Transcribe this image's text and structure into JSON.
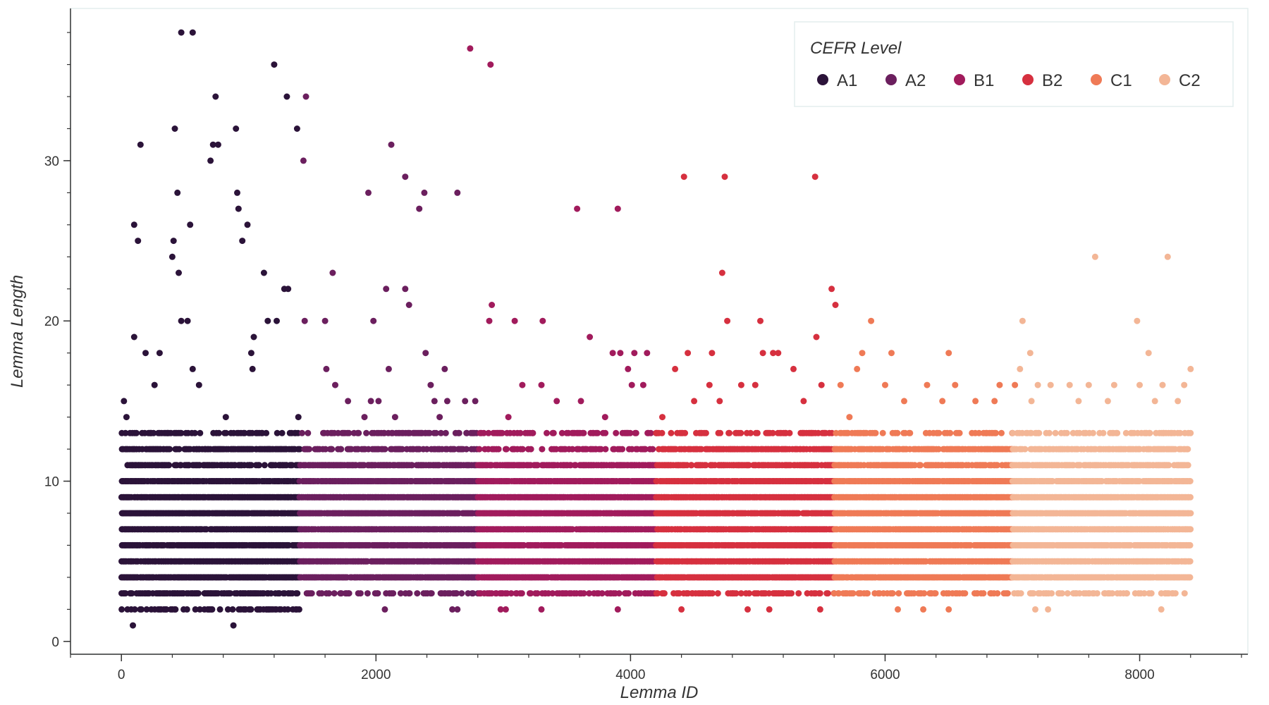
{
  "chart_data": {
    "type": "scatter",
    "title": "",
    "xlabel": "Lemma ID",
    "ylabel": "Lemma Length",
    "xlim": [
      -400,
      8850
    ],
    "ylim": [
      -0.8,
      39.5
    ],
    "x_ticks": [
      0,
      2000,
      4000,
      6000,
      8000
    ],
    "y_ticks": [
      0,
      10,
      20,
      30
    ],
    "grid": false,
    "legend": {
      "title": "CEFR Level",
      "placement": "top-right",
      "entries": [
        "A1",
        "A2",
        "B1",
        "B2",
        "C1",
        "C2"
      ]
    },
    "series": [
      {
        "name": "A1",
        "color": "#2b1339",
        "x_range": [
          0,
          1400
        ],
        "dense_levels": [
          3,
          4,
          5,
          6,
          7,
          8,
          9,
          10,
          11,
          12
        ],
        "sparse_levels": [
          2,
          13
        ],
        "outliers": [
          [
            90,
            1
          ],
          [
            880,
            1
          ],
          [
            20,
            15
          ],
          [
            40,
            14
          ],
          [
            100,
            19
          ],
          [
            130,
            25
          ],
          [
            100,
            26
          ],
          [
            150,
            31
          ],
          [
            190,
            18
          ],
          [
            260,
            16
          ],
          [
            300,
            18
          ],
          [
            420,
            32
          ],
          [
            400,
            24
          ],
          [
            410,
            25
          ],
          [
            440,
            28
          ],
          [
            450,
            23
          ],
          [
            470,
            38
          ],
          [
            560,
            38
          ],
          [
            470,
            20
          ],
          [
            520,
            20
          ],
          [
            540,
            26
          ],
          [
            560,
            17
          ],
          [
            610,
            16
          ],
          [
            700,
            30
          ],
          [
            720,
            31
          ],
          [
            740,
            34
          ],
          [
            760,
            31
          ],
          [
            820,
            14
          ],
          [
            900,
            32
          ],
          [
            910,
            28
          ],
          [
            920,
            27
          ],
          [
            950,
            25
          ],
          [
            990,
            26
          ],
          [
            1020,
            18
          ],
          [
            1030,
            17
          ],
          [
            1040,
            19
          ],
          [
            1120,
            23
          ],
          [
            1150,
            20
          ],
          [
            1200,
            36
          ],
          [
            1220,
            20
          ],
          [
            1280,
            22
          ],
          [
            1300,
            34
          ],
          [
            1310,
            22
          ],
          [
            1380,
            32
          ],
          [
            1390,
            14
          ],
          [
            960,
            13
          ],
          [
            360,
            13
          ],
          [
            540,
            12
          ],
          [
            660,
            12
          ]
        ]
      },
      {
        "name": "A2",
        "color": "#6b1f5e",
        "x_range": [
          1400,
          2800
        ],
        "dense_levels": [
          4,
          5,
          6,
          7,
          8,
          9,
          10,
          11
        ],
        "sparse_levels": [
          3,
          12,
          13
        ],
        "outliers": [
          [
            1450,
            34
          ],
          [
            1430,
            30
          ],
          [
            1440,
            20
          ],
          [
            1600,
            20
          ],
          [
            1610,
            17
          ],
          [
            1660,
            23
          ],
          [
            1680,
            16
          ],
          [
            1780,
            15
          ],
          [
            1940,
            28
          ],
          [
            1980,
            20
          ],
          [
            1960,
            15
          ],
          [
            1910,
            14
          ],
          [
            2020,
            15
          ],
          [
            2080,
            22
          ],
          [
            2100,
            17
          ],
          [
            2120,
            31
          ],
          [
            2150,
            14
          ],
          [
            2230,
            29
          ],
          [
            2230,
            22
          ],
          [
            2260,
            21
          ],
          [
            2340,
            27
          ],
          [
            2380,
            28
          ],
          [
            2390,
            18
          ],
          [
            2430,
            16
          ],
          [
            2460,
            15
          ],
          [
            2500,
            14
          ],
          [
            2540,
            17
          ],
          [
            2560,
            15
          ],
          [
            2640,
            28
          ],
          [
            2700,
            15
          ],
          [
            2780,
            15
          ],
          [
            2070,
            2
          ],
          [
            2600,
            2
          ],
          [
            2640,
            2
          ]
        ]
      },
      {
        "name": "B1",
        "color": "#a11b5c",
        "x_range": [
          2800,
          4200
        ],
        "dense_levels": [
          4,
          5,
          6,
          7,
          8,
          9,
          10,
          11
        ],
        "sparse_levels": [
          3,
          12,
          13
        ],
        "outliers": [
          [
            2740,
            37
          ],
          [
            2900,
            36
          ],
          [
            2910,
            21
          ],
          [
            2890,
            20
          ],
          [
            3090,
            20
          ],
          [
            3310,
            20
          ],
          [
            3580,
            27
          ],
          [
            3680,
            19
          ],
          [
            3900,
            27
          ],
          [
            3860,
            18
          ],
          [
            3920,
            18
          ],
          [
            3980,
            17
          ],
          [
            4030,
            18
          ],
          [
            4130,
            18
          ],
          [
            4010,
            16
          ],
          [
            4100,
            16
          ],
          [
            3150,
            16
          ],
          [
            3300,
            16
          ],
          [
            3420,
            15
          ],
          [
            3610,
            15
          ],
          [
            3800,
            14
          ],
          [
            3040,
            14
          ],
          [
            2980,
            2
          ],
          [
            3020,
            2
          ],
          [
            3300,
            2
          ],
          [
            3900,
            2
          ]
        ]
      },
      {
        "name": "B2",
        "color": "#d6303f",
        "x_range": [
          4200,
          5600
        ],
        "dense_levels": [
          4,
          5,
          6,
          7,
          8,
          9,
          10,
          11,
          12
        ],
        "sparse_levels": [
          3,
          13
        ],
        "outliers": [
          [
            4420,
            29
          ],
          [
            4740,
            29
          ],
          [
            5450,
            29
          ],
          [
            4720,
            23
          ],
          [
            4760,
            20
          ],
          [
            5020,
            20
          ],
          [
            5580,
            22
          ],
          [
            5610,
            21
          ],
          [
            5460,
            19
          ],
          [
            4450,
            18
          ],
          [
            4640,
            18
          ],
          [
            5040,
            18
          ],
          [
            5120,
            18
          ],
          [
            5160,
            18
          ],
          [
            5280,
            17
          ],
          [
            4350,
            17
          ],
          [
            4870,
            16
          ],
          [
            4980,
            16
          ],
          [
            4620,
            16
          ],
          [
            5500,
            16
          ],
          [
            4500,
            15
          ],
          [
            4700,
            15
          ],
          [
            5360,
            15
          ],
          [
            4250,
            14
          ],
          [
            4400,
            2
          ],
          [
            4920,
            2
          ],
          [
            5090,
            2
          ],
          [
            5490,
            2
          ]
        ]
      },
      {
        "name": "C1",
        "color": "#ef7a56",
        "x_range": [
          5600,
          7000
        ],
        "dense_levels": [
          4,
          5,
          6,
          7,
          8,
          9,
          10,
          11,
          12
        ],
        "sparse_levels": [
          3,
          13
        ],
        "outliers": [
          [
            5890,
            20
          ],
          [
            5820,
            18
          ],
          [
            6050,
            18
          ],
          [
            6500,
            18
          ],
          [
            5650,
            16
          ],
          [
            5780,
            17
          ],
          [
            6330,
            16
          ],
          [
            6550,
            16
          ],
          [
            6900,
            16
          ],
          [
            6000,
            16
          ],
          [
            6710,
            15
          ],
          [
            6150,
            15
          ],
          [
            6450,
            15
          ],
          [
            6860,
            15
          ],
          [
            7020,
            16
          ],
          [
            5720,
            14
          ],
          [
            6100,
            2
          ],
          [
            6300,
            2
          ],
          [
            6500,
            2
          ]
        ]
      },
      {
        "name": "C2",
        "color": "#f3b696",
        "x_range": [
          7000,
          8400
        ],
        "dense_levels": [
          4,
          5,
          6,
          7,
          8,
          9,
          10,
          11,
          12
        ],
        "sparse_levels": [
          3,
          13
        ],
        "outliers": [
          [
            7650,
            24
          ],
          [
            8220,
            24
          ],
          [
            7080,
            20
          ],
          [
            7980,
            20
          ],
          [
            7140,
            18
          ],
          [
            8070,
            18
          ],
          [
            7060,
            17
          ],
          [
            8400,
            17
          ],
          [
            7200,
            16
          ],
          [
            7300,
            16
          ],
          [
            7450,
            16
          ],
          [
            7600,
            16
          ],
          [
            7800,
            16
          ],
          [
            8000,
            16
          ],
          [
            8180,
            16
          ],
          [
            8350,
            16
          ],
          [
            7150,
            15
          ],
          [
            7520,
            15
          ],
          [
            7750,
            15
          ],
          [
            8120,
            15
          ],
          [
            8300,
            15
          ],
          [
            7180,
            2
          ],
          [
            7280,
            2
          ],
          [
            8170,
            2
          ]
        ]
      }
    ]
  }
}
